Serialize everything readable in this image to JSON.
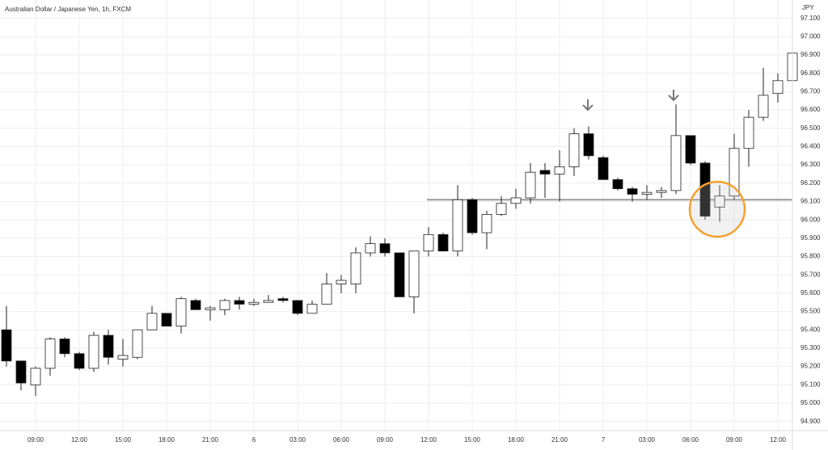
{
  "chart_data": {
    "type": "candlestick",
    "title": "Australian Dollar / Japanese Yen, 1h, FXCM",
    "y_axis_label": "JPY",
    "categories": [
      null,
      null,
      "09:00",
      null,
      null,
      "12:00",
      null,
      null,
      "15:00",
      null,
      null,
      "18:00",
      null,
      null,
      "21:00",
      null,
      null,
      "6",
      null,
      null,
      "03:00",
      null,
      null,
      "06:00",
      null,
      null,
      "09:00",
      null,
      null,
      "12:00",
      null,
      null,
      "15:00",
      null,
      null,
      "18:00",
      null,
      null,
      "21:00",
      null,
      null,
      "7",
      null,
      null,
      "03:00",
      null,
      null,
      "06:00",
      null,
      null,
      "09:00",
      null,
      null,
      "12:00",
      null
    ],
    "open": [
      95.4,
      95.23,
      95.1,
      95.19,
      95.35,
      95.27,
      95.19,
      95.37,
      95.24,
      95.25,
      95.4,
      95.49,
      95.42,
      95.56,
      95.51,
      95.51,
      95.56,
      95.54,
      95.55,
      95.57,
      95.56,
      95.49,
      95.54,
      95.65,
      95.65,
      95.82,
      95.87,
      95.82,
      95.58,
      95.83,
      95.92,
      95.83,
      96.11,
      95.93,
      96.03,
      96.09,
      96.12,
      96.27,
      96.25,
      96.29,
      96.47,
      96.34,
      96.22,
      96.17,
      96.14,
      96.15,
      96.16,
      96.46,
      96.31,
      96.07,
      96.13,
      96.39,
      96.56,
      96.69,
      96.76
    ],
    "high": [
      95.53,
      95.23,
      95.2,
      95.36,
      95.36,
      95.28,
      95.39,
      95.4,
      95.35,
      95.4,
      95.53,
      95.49,
      95.58,
      95.57,
      95.53,
      95.57,
      95.58,
      95.57,
      95.59,
      95.58,
      95.56,
      95.56,
      95.71,
      95.7,
      95.85,
      95.91,
      95.9,
      95.82,
      95.83,
      95.96,
      95.93,
      96.19,
      96.12,
      96.05,
      96.13,
      96.17,
      96.31,
      96.31,
      96.38,
      96.5,
      96.51,
      96.35,
      96.23,
      96.18,
      96.19,
      96.18,
      96.63,
      96.46,
      96.32,
      96.19,
      96.47,
      96.6,
      96.83,
      96.8,
      96.96
    ],
    "low": [
      95.2,
      95.07,
      95.04,
      95.15,
      95.25,
      95.18,
      95.17,
      95.21,
      95.2,
      95.24,
      95.4,
      95.42,
      95.38,
      95.51,
      95.45,
      95.48,
      95.51,
      95.53,
      95.55,
      95.55,
      95.48,
      95.49,
      95.54,
      95.6,
      95.6,
      95.8,
      95.8,
      95.58,
      95.49,
      95.8,
      95.83,
      95.8,
      95.92,
      95.84,
      96.02,
      96.06,
      96.09,
      96.12,
      96.1,
      96.24,
      96.33,
      96.22,
      96.16,
      96.1,
      96.11,
      96.12,
      96.14,
      96.3,
      96.0,
      95.99,
      96.11,
      96.29,
      96.54,
      96.64,
      96.7
    ],
    "close": [
      95.23,
      95.11,
      95.19,
      95.35,
      95.27,
      95.19,
      95.37,
      95.25,
      95.26,
      95.4,
      95.49,
      95.42,
      95.57,
      95.51,
      95.52,
      95.56,
      95.54,
      95.55,
      95.56,
      95.56,
      95.49,
      95.54,
      95.65,
      95.67,
      95.82,
      95.87,
      95.82,
      95.58,
      95.83,
      95.92,
      95.83,
      96.11,
      95.93,
      96.03,
      96.09,
      96.12,
      96.26,
      96.25,
      96.29,
      96.47,
      96.35,
      96.22,
      96.17,
      96.14,
      96.15,
      96.16,
      96.46,
      96.31,
      96.02,
      96.13,
      96.39,
      96.56,
      96.68,
      96.76,
      96.91
    ],
    "up_color": "#ffffff",
    "down_color": "#000000",
    "hline": 96.11,
    "grid": true,
    "ylim": [
      94.85,
      97.2
    ],
    "yticks": [
      {
        "value": 94.9,
        "label": "94.900"
      },
      {
        "value": 95.0,
        "label": "95.000"
      },
      {
        "value": 95.1,
        "label": "95.100"
      },
      {
        "value": 95.2,
        "label": "95.200"
      },
      {
        "value": 95.3,
        "label": "95.300"
      },
      {
        "value": 95.4,
        "label": "95.400"
      },
      {
        "value": 95.5,
        "label": "95.500"
      },
      {
        "value": 95.6,
        "label": "95.600"
      },
      {
        "value": 95.7,
        "label": "95.700"
      },
      {
        "value": 95.8,
        "label": "95.800"
      },
      {
        "value": 95.9,
        "label": "95.900"
      },
      {
        "value": 96.0,
        "label": "96.000"
      },
      {
        "value": 96.1,
        "label": "96.100"
      },
      {
        "value": 96.2,
        "label": "96.200"
      },
      {
        "value": 96.3,
        "label": "96.300"
      },
      {
        "value": 96.4,
        "label": "96.400"
      },
      {
        "value": 96.5,
        "label": "96.500"
      },
      {
        "value": 96.6,
        "label": "96.600"
      },
      {
        "value": 96.7,
        "label": "96.700"
      },
      {
        "value": 96.8,
        "label": "96.800"
      },
      {
        "value": 96.9,
        "label": "96.900"
      },
      {
        "value": 97.0,
        "label": "97.000"
      },
      {
        "value": 97.1,
        "label": "97.100"
      }
    ]
  }
}
